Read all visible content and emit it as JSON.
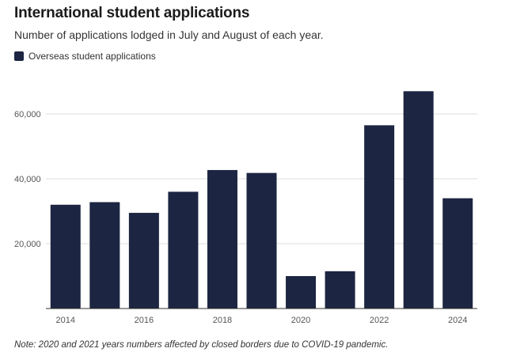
{
  "chart_data": {
    "type": "bar",
    "title": "International student applications",
    "subtitle": "Number of applications lodged in July and August of each year.",
    "legend": "Overseas student applications",
    "series_color": "#1c2541",
    "categories": [
      "2014",
      "2015",
      "2016",
      "2017",
      "2018",
      "2019",
      "2020",
      "2021",
      "2022",
      "2023",
      "2024"
    ],
    "x_tick_labels": [
      "2014",
      "2016",
      "2018",
      "2020",
      "2022",
      "2024"
    ],
    "values": [
      32000,
      32800,
      29500,
      36000,
      42700,
      41800,
      10000,
      11500,
      56500,
      67000,
      34000
    ],
    "ylim": [
      0,
      70000
    ],
    "y_ticks": [
      20000,
      40000,
      60000
    ],
    "y_tick_labels": [
      "20,000",
      "40,000",
      "60,000"
    ],
    "grid": true,
    "xlabel": "",
    "ylabel": ""
  },
  "note": "Note: 2020 and 2021 years numbers affected by closed borders due to COVID-19 pandemic."
}
